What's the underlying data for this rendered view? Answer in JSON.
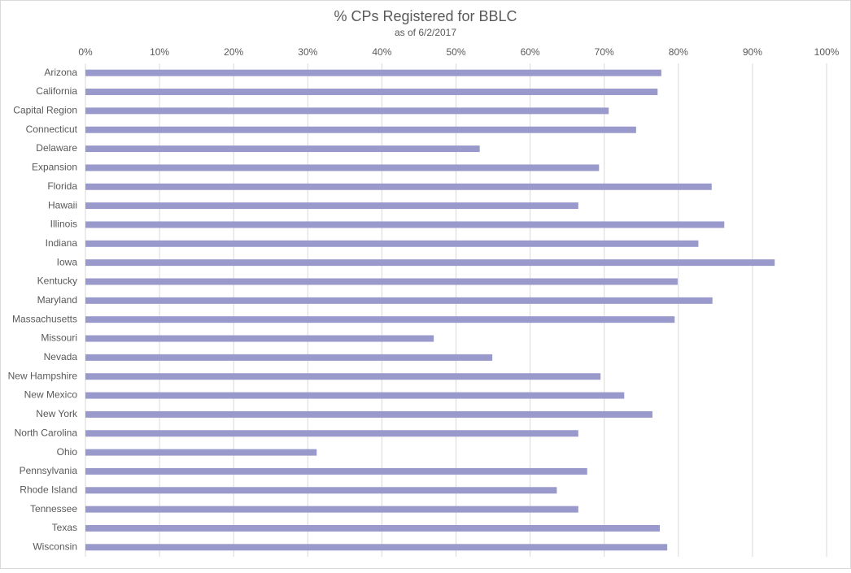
{
  "chart_data": {
    "type": "bar",
    "orientation": "horizontal",
    "title": "% CPs Registered for BBLC",
    "subtitle": "as of 6/2/2017",
    "categories": [
      "Arizona",
      "California",
      "Capital Region",
      "Connecticut",
      "Delaware",
      "Expansion",
      "Florida",
      "Hawaii",
      "Illinois",
      "Indiana",
      "Iowa",
      "Kentucky",
      "Maryland",
      "Massachusetts",
      "Missouri",
      "Nevada",
      "New Hampshire",
      "New Mexico",
      "New York",
      "North Carolina",
      "Ohio",
      "Pennsylvania",
      "Rhode Island",
      "Tennessee",
      "Texas",
      "Wisconsin"
    ],
    "values": [
      77.7,
      77.2,
      70.6,
      74.3,
      53.2,
      69.3,
      84.5,
      66.5,
      86.2,
      82.7,
      93.0,
      79.9,
      84.6,
      79.5,
      47.0,
      54.9,
      69.5,
      72.7,
      76.5,
      66.5,
      31.2,
      67.7,
      63.6,
      66.5,
      77.5,
      78.5
    ],
    "color": "#9999cc",
    "xlim": [
      0,
      100
    ],
    "xticks": [
      {
        "value": 0,
        "label": "0%"
      },
      {
        "value": 10,
        "label": "10%"
      },
      {
        "value": 20,
        "label": "20%"
      },
      {
        "value": 30,
        "label": "30%"
      },
      {
        "value": 40,
        "label": "40%"
      },
      {
        "value": 50,
        "label": "50%"
      },
      {
        "value": 60,
        "label": "60%"
      },
      {
        "value": 70,
        "label": "70%"
      },
      {
        "value": 80,
        "label": "80%"
      },
      {
        "value": 90,
        "label": "90%"
      },
      {
        "value": 100,
        "label": "100%"
      }
    ],
    "grid": true
  }
}
